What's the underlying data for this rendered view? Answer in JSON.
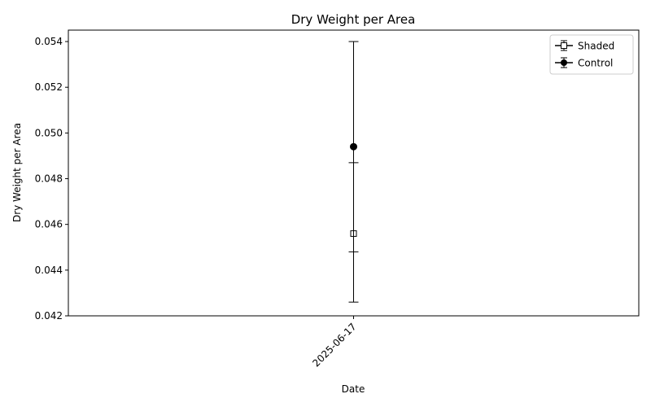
{
  "chart_data": {
    "type": "scatter",
    "title": "Dry Weight per Area",
    "xlabel": "Date",
    "ylabel": "Dry Weight per Area",
    "categories": [
      "2025-06-17"
    ],
    "ylim": [
      0.042,
      0.0545
    ],
    "yticks": [
      "0.042",
      "0.044",
      "0.046",
      "0.048",
      "0.050",
      "0.052",
      "0.054"
    ],
    "grid": false,
    "legend_position": "top-right",
    "series": [
      {
        "name": "Shaded",
        "marker": "square-open",
        "color": "#000000",
        "points": [
          {
            "x": "2025-06-17",
            "y": 0.0456,
            "err_low": 0.0426,
            "err_high": 0.0487
          }
        ]
      },
      {
        "name": "Control",
        "marker": "circle-filled",
        "color": "#000000",
        "points": [
          {
            "x": "2025-06-17",
            "y": 0.0494,
            "err_low": 0.0448,
            "err_high": 0.054
          }
        ]
      }
    ]
  }
}
